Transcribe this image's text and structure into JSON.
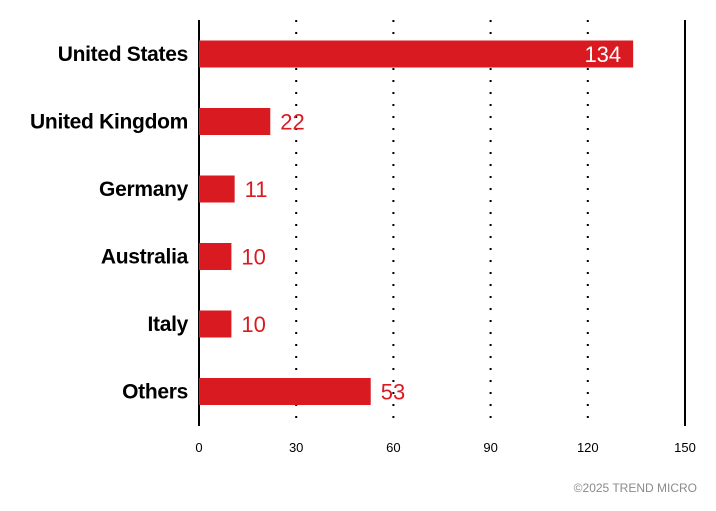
{
  "chart_data": {
    "type": "bar",
    "orientation": "horizontal",
    "categories": [
      "United States",
      "United Kingdom",
      "Germany",
      "Australia",
      "Italy",
      "Others"
    ],
    "values": [
      134,
      22,
      11,
      10,
      10,
      53
    ],
    "xlim": [
      0,
      150
    ],
    "xticks": [
      "0",
      "30",
      "60",
      "90",
      "120",
      "150"
    ],
    "grid": "dotted vertical",
    "bar_color": "#d91a21",
    "label_color": "#d91a21"
  },
  "footer": {
    "copyright": "©2025 TREND MICRO"
  }
}
